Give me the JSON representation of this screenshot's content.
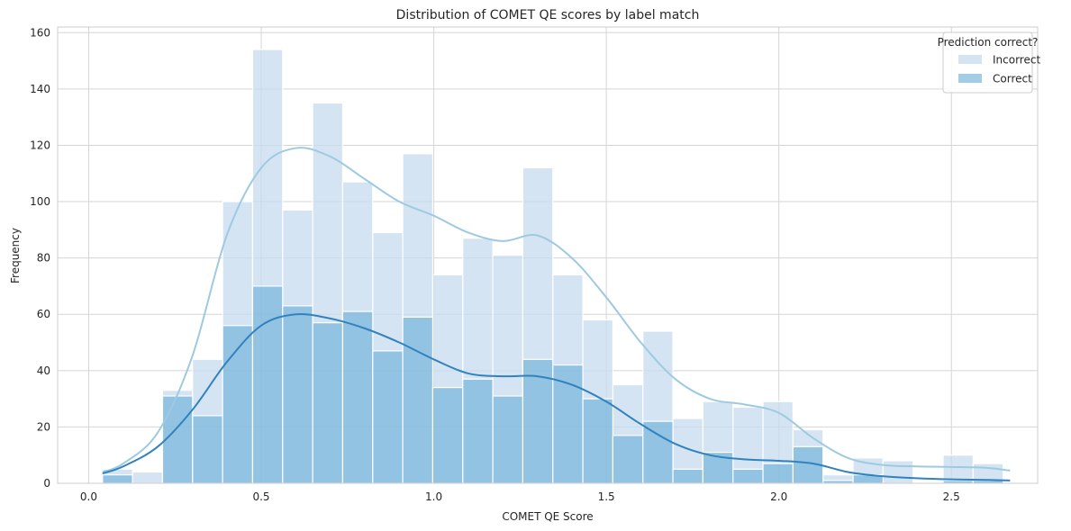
{
  "chart_data": {
    "type": "bar",
    "subtype": "overlaid-histogram-with-kde",
    "title": "Distribution of COMET QE scores by label match",
    "xlabel": "COMET QE Score",
    "ylabel": "Frequency",
    "xlim": [
      -0.09,
      2.75
    ],
    "ylim": [
      0,
      162
    ],
    "xticks": [
      0.0,
      0.5,
      1.0,
      1.5,
      2.0,
      2.5
    ],
    "xtick_labels": [
      "0.0",
      "0.5",
      "1.0",
      "1.5",
      "2.0",
      "2.5"
    ],
    "yticks": [
      0,
      20,
      40,
      60,
      80,
      100,
      120,
      140,
      160
    ],
    "ytick_labels": [
      "0",
      "20",
      "40",
      "60",
      "80",
      "100",
      "120",
      "140",
      "160"
    ],
    "grid": true,
    "legend": {
      "title": "Prediction correct?",
      "placement": "top-right"
    },
    "bin_edges": [
      0.04,
      0.127,
      0.214,
      0.301,
      0.388,
      0.475,
      0.562,
      0.649,
      0.736,
      0.823,
      0.91,
      0.997,
      1.084,
      1.171,
      1.258,
      1.345,
      1.432,
      1.519,
      1.606,
      1.693,
      1.78,
      1.867,
      1.954,
      2.041,
      2.128,
      2.215,
      2.302,
      2.389,
      2.476,
      2.563,
      2.65
    ],
    "series": [
      {
        "name": "Incorrect",
        "color": "#c6dbef",
        "line_color": "#9ecae1",
        "values": [
          5,
          4,
          33,
          44,
          100,
          154,
          97,
          135,
          107,
          89,
          117,
          74,
          87,
          81,
          112,
          74,
          58,
          35,
          54,
          23,
          29,
          27,
          29,
          19,
          3,
          9,
          8,
          0,
          10,
          7
        ],
        "kde": [
          [
            0.04,
            4
          ],
          [
            0.1,
            7
          ],
          [
            0.2,
            18
          ],
          [
            0.3,
            45
          ],
          [
            0.4,
            88
          ],
          [
            0.5,
            112
          ],
          [
            0.6,
            119
          ],
          [
            0.7,
            116
          ],
          [
            0.8,
            108
          ],
          [
            0.9,
            100
          ],
          [
            1.0,
            95
          ],
          [
            1.1,
            89
          ],
          [
            1.2,
            86
          ],
          [
            1.3,
            88
          ],
          [
            1.4,
            80
          ],
          [
            1.5,
            66
          ],
          [
            1.6,
            50
          ],
          [
            1.7,
            37
          ],
          [
            1.8,
            30
          ],
          [
            1.9,
            28
          ],
          [
            2.0,
            25
          ],
          [
            2.1,
            16
          ],
          [
            2.2,
            9
          ],
          [
            2.3,
            6.5
          ],
          [
            2.4,
            6
          ],
          [
            2.5,
            5.8
          ],
          [
            2.6,
            5.5
          ],
          [
            2.67,
            4.5
          ]
        ]
      },
      {
        "name": "Correct",
        "color": "#6baed6",
        "line_color": "#3182bd",
        "values": [
          3,
          0,
          31,
          24,
          56,
          70,
          63,
          57,
          61,
          47,
          59,
          34,
          37,
          31,
          44,
          42,
          30,
          17,
          22,
          5,
          11,
          5,
          7,
          13,
          1,
          3,
          0,
          0,
          1,
          1
        ],
        "kde": [
          [
            0.04,
            3.5
          ],
          [
            0.1,
            6
          ],
          [
            0.2,
            13
          ],
          [
            0.3,
            26
          ],
          [
            0.4,
            43
          ],
          [
            0.5,
            56
          ],
          [
            0.6,
            60
          ],
          [
            0.7,
            58.5
          ],
          [
            0.8,
            55
          ],
          [
            0.9,
            50
          ],
          [
            1.0,
            44
          ],
          [
            1.1,
            39
          ],
          [
            1.2,
            38
          ],
          [
            1.3,
            38
          ],
          [
            1.4,
            35
          ],
          [
            1.5,
            29
          ],
          [
            1.6,
            21
          ],
          [
            1.7,
            14
          ],
          [
            1.8,
            10
          ],
          [
            1.9,
            8.5
          ],
          [
            2.0,
            8
          ],
          [
            2.1,
            7
          ],
          [
            2.2,
            4
          ],
          [
            2.3,
            2.5
          ],
          [
            2.4,
            1.8
          ],
          [
            2.5,
            1.4
          ],
          [
            2.6,
            1.2
          ],
          [
            2.67,
            1
          ]
        ]
      }
    ]
  }
}
